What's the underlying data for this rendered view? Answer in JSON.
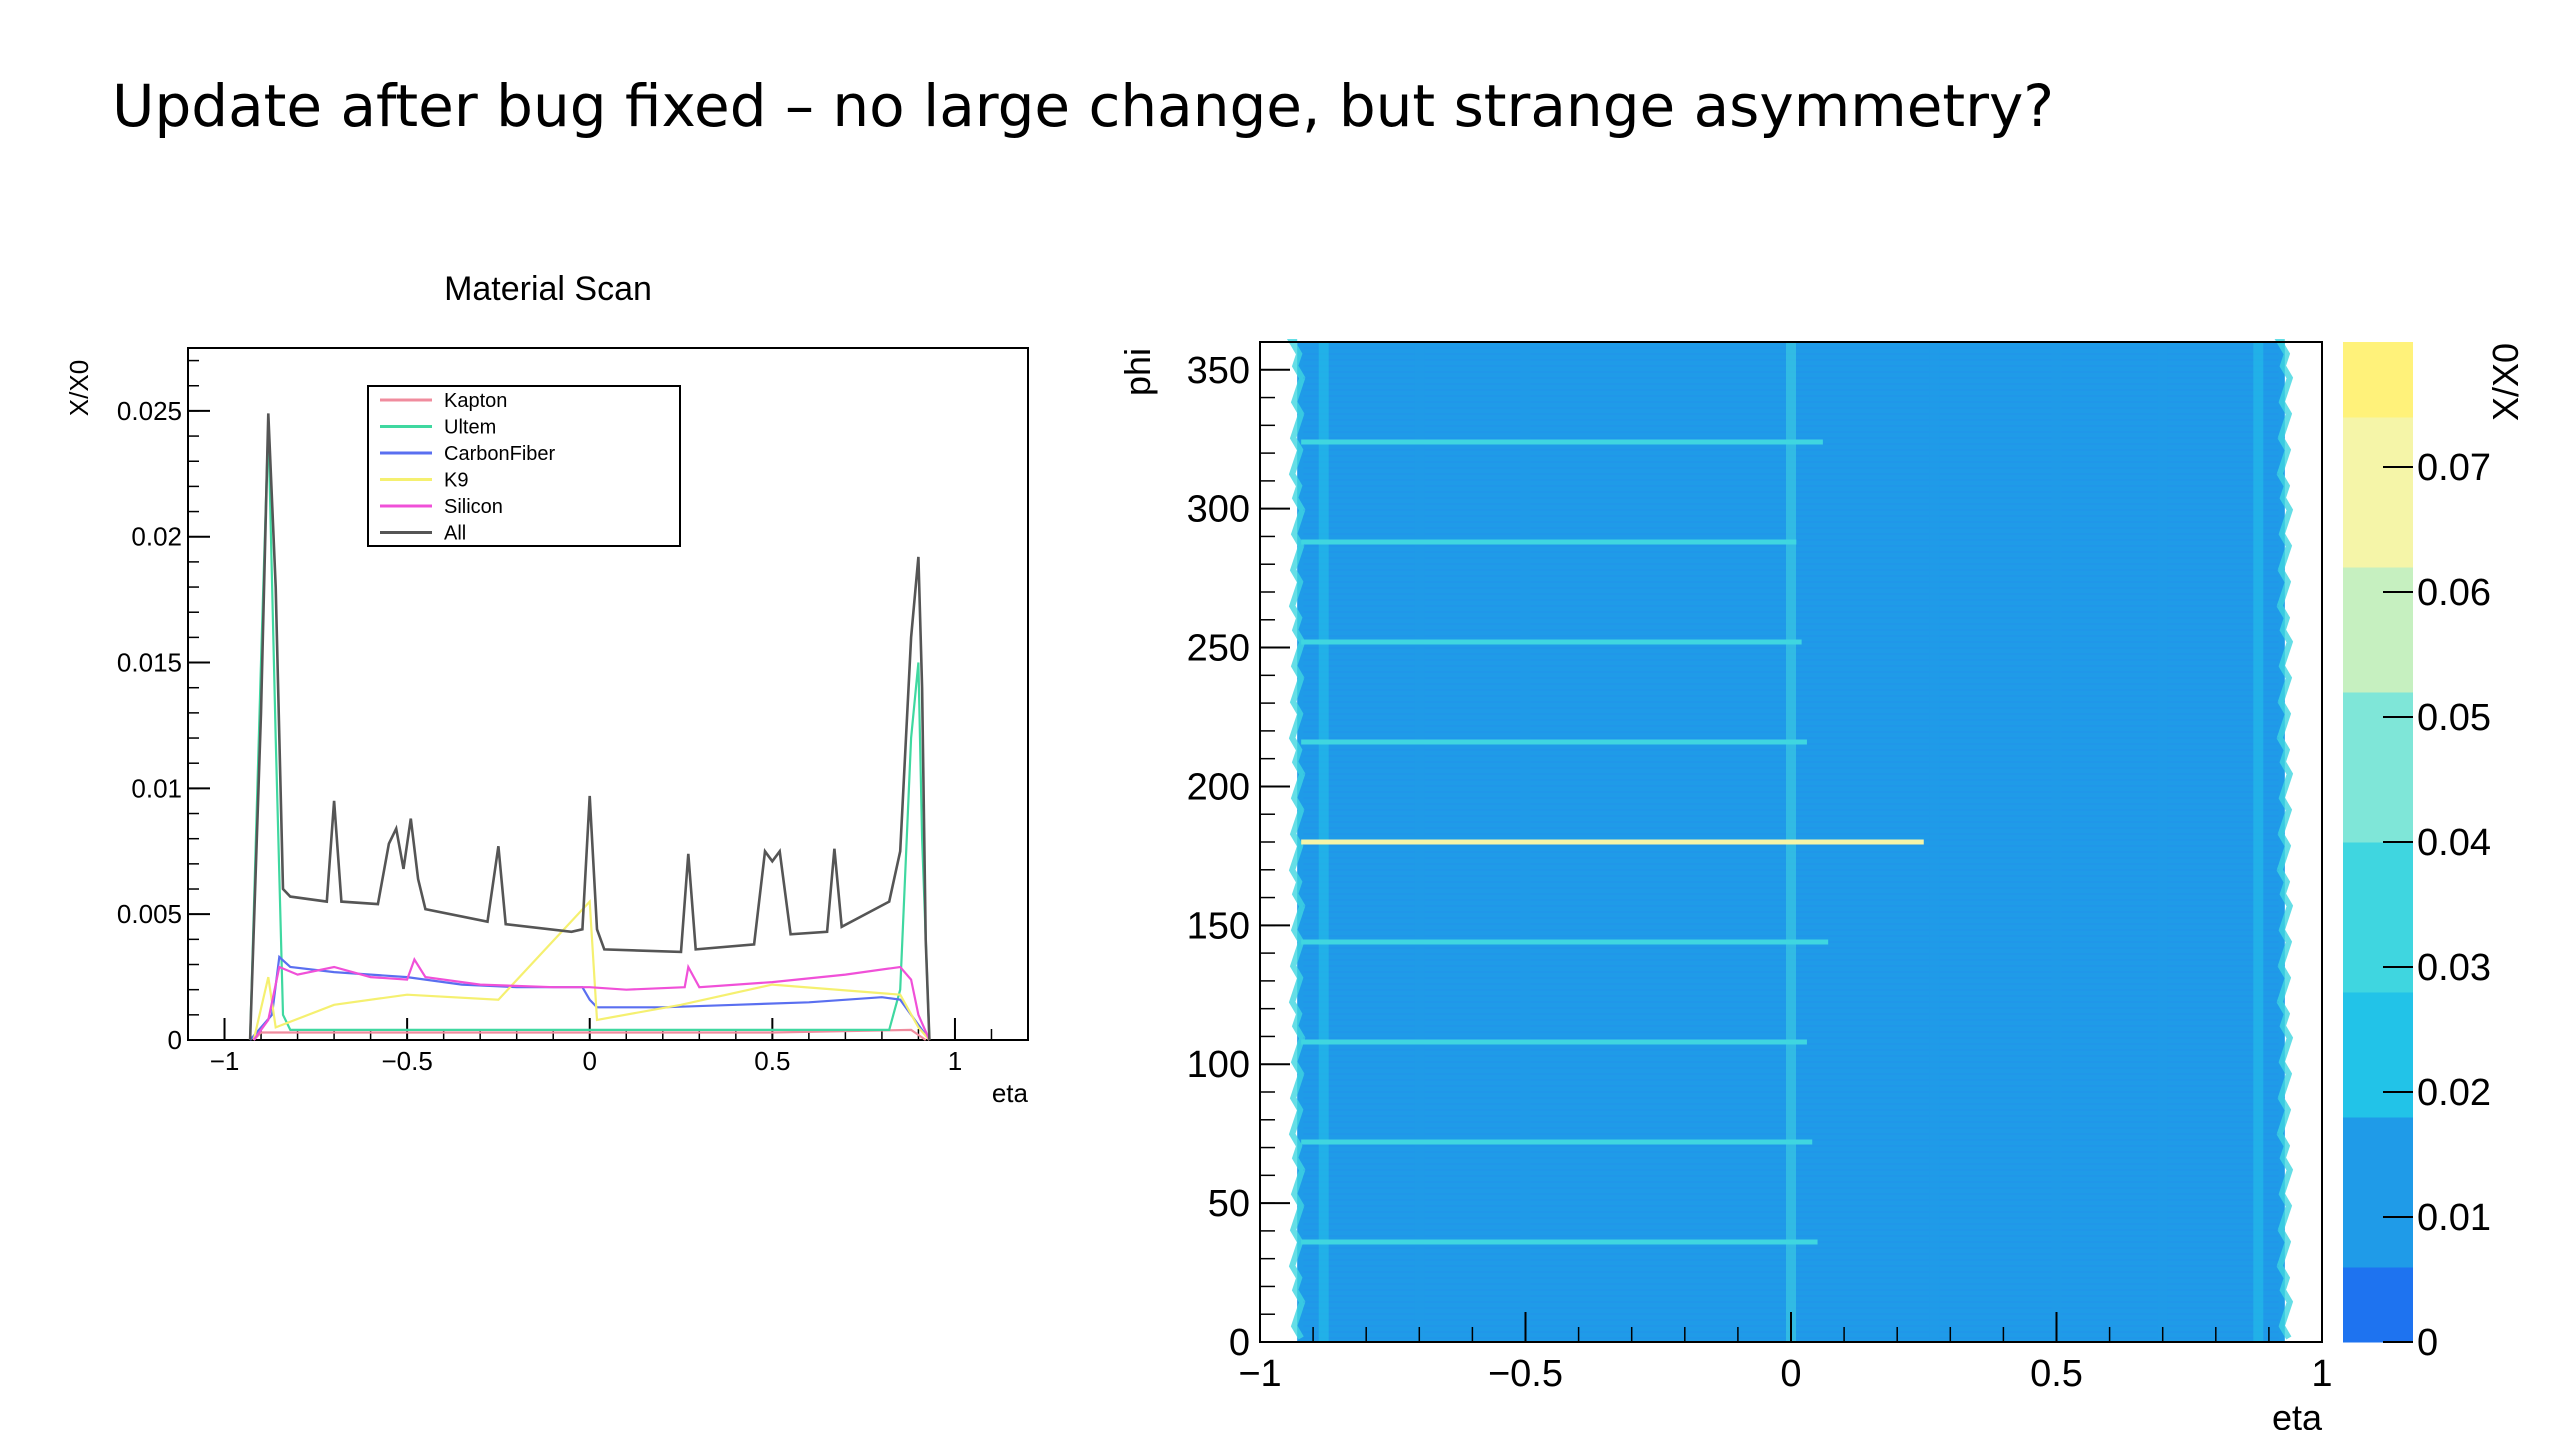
{
  "slide": {
    "title": "Update after bug fixed – no large change, but strange asymmetry?"
  },
  "chart_data": [
    {
      "type": "line",
      "title": "Material Scan",
      "xlabel": "eta",
      "ylabel": "X/X0",
      "xlim": [
        -1.1,
        1.2
      ],
      "ylim": [
        0,
        0.0275
      ],
      "x_ticks": [
        -1,
        -0.5,
        0,
        0.5,
        1
      ],
      "x_tick_labels": [
        "−1",
        "−0.5",
        "0",
        "0.5",
        "1"
      ],
      "y_ticks": [
        0,
        0.005,
        0.01,
        0.015,
        0.02,
        0.025
      ],
      "y_tick_labels": [
        "0",
        "0.005",
        "0.01",
        "0.015",
        "0.02",
        "0.025"
      ],
      "legend_position": "top-center",
      "grid": false,
      "series": [
        {
          "name": "Kapton",
          "color": "#f08c9e",
          "points": [
            [
              -0.92,
              0
            ],
            [
              -0.9,
              0.0003
            ],
            [
              -0.8,
              0.0003
            ],
            [
              -0.5,
              0.0003
            ],
            [
              0,
              0.0003
            ],
            [
              0.5,
              0.0003
            ],
            [
              0.88,
              0.0004
            ],
            [
              0.92,
              0
            ]
          ]
        },
        {
          "name": "Ultem",
          "color": "#3fd8a0",
          "points": [
            [
              -0.93,
              0
            ],
            [
              -0.9,
              0.015
            ],
            [
              -0.88,
              0.0245
            ],
            [
              -0.86,
              0.012
            ],
            [
              -0.84,
              0.001
            ],
            [
              -0.82,
              0.0004
            ],
            [
              0.82,
              0.0004
            ],
            [
              0.85,
              0.002
            ],
            [
              0.88,
              0.012
            ],
            [
              0.9,
              0.015
            ],
            [
              0.91,
              0.008
            ],
            [
              0.93,
              0
            ]
          ]
        },
        {
          "name": "CarbonFiber",
          "color": "#5a6ff0",
          "points": [
            [
              -0.93,
              0
            ],
            [
              -0.87,
              0.001
            ],
            [
              -0.85,
              0.0033
            ],
            [
              -0.82,
              0.0029
            ],
            [
              -0.7,
              0.0027
            ],
            [
              -0.5,
              0.0025
            ],
            [
              -0.35,
              0.0022
            ],
            [
              -0.2,
              0.0021
            ],
            [
              -0.02,
              0.0021
            ],
            [
              0,
              0.0016
            ],
            [
              0.02,
              0.0013
            ],
            [
              0.2,
              0.0013
            ],
            [
              0.4,
              0.0014
            ],
            [
              0.6,
              0.0015
            ],
            [
              0.8,
              0.0017
            ],
            [
              0.85,
              0.0016
            ],
            [
              0.88,
              0.001
            ],
            [
              0.93,
              0
            ]
          ]
        },
        {
          "name": "K9",
          "color": "#f5f070",
          "points": [
            [
              -0.92,
              0
            ],
            [
              -0.88,
              0.0025
            ],
            [
              -0.86,
              0.0005
            ],
            [
              -0.7,
              0.0014
            ],
            [
              -0.5,
              0.0018
            ],
            [
              -0.25,
              0.0016
            ],
            [
              0,
              0.0055
            ],
            [
              0.02,
              0.0008
            ],
            [
              0.25,
              0.0014
            ],
            [
              0.5,
              0.0022
            ],
            [
              0.85,
              0.0018
            ],
            [
              0.9,
              0.0005
            ],
            [
              0.93,
              0
            ]
          ]
        },
        {
          "name": "Silicon",
          "color": "#f050d8",
          "points": [
            [
              -0.92,
              0
            ],
            [
              -0.88,
              0.0008
            ],
            [
              -0.85,
              0.0029
            ],
            [
              -0.8,
              0.0026
            ],
            [
              -0.7,
              0.0029
            ],
            [
              -0.6,
              0.0025
            ],
            [
              -0.5,
              0.0024
            ],
            [
              -0.48,
              0.0032
            ],
            [
              -0.45,
              0.0025
            ],
            [
              -0.3,
              0.0022
            ],
            [
              -0.1,
              0.0021
            ],
            [
              0,
              0.0021
            ],
            [
              0.1,
              0.002
            ],
            [
              0.26,
              0.0021
            ],
            [
              0.27,
              0.0029
            ],
            [
              0.3,
              0.0021
            ],
            [
              0.5,
              0.0023
            ],
            [
              0.7,
              0.0026
            ],
            [
              0.85,
              0.0029
            ],
            [
              0.88,
              0.0024
            ],
            [
              0.9,
              0.001
            ],
            [
              0.93,
              0
            ]
          ]
        },
        {
          "name": "All",
          "color": "#555555",
          "points": [
            [
              -0.93,
              0
            ],
            [
              -0.9,
              0.013
            ],
            [
              -0.88,
              0.0249
            ],
            [
              -0.86,
              0.018
            ],
            [
              -0.84,
              0.006
            ],
            [
              -0.82,
              0.0057
            ],
            [
              -0.72,
              0.0055
            ],
            [
              -0.7,
              0.0095
            ],
            [
              -0.68,
              0.0055
            ],
            [
              -0.58,
              0.0054
            ],
            [
              -0.55,
              0.0078
            ],
            [
              -0.53,
              0.0084
            ],
            [
              -0.51,
              0.0068
            ],
            [
              -0.49,
              0.0088
            ],
            [
              -0.47,
              0.0064
            ],
            [
              -0.45,
              0.0052
            ],
            [
              -0.28,
              0.0047
            ],
            [
              -0.25,
              0.0077
            ],
            [
              -0.23,
              0.0046
            ],
            [
              -0.05,
              0.0043
            ],
            [
              -0.02,
              0.0044
            ],
            [
              0,
              0.0097
            ],
            [
              0.02,
              0.0044
            ],
            [
              0.04,
              0.0036
            ],
            [
              0.25,
              0.0035
            ],
            [
              0.27,
              0.0074
            ],
            [
              0.29,
              0.0036
            ],
            [
              0.45,
              0.0038
            ],
            [
              0.48,
              0.0075
            ],
            [
              0.5,
              0.0071
            ],
            [
              0.52,
              0.0075
            ],
            [
              0.55,
              0.0042
            ],
            [
              0.65,
              0.0043
            ],
            [
              0.67,
              0.0076
            ],
            [
              0.69,
              0.0045
            ],
            [
              0.82,
              0.0055
            ],
            [
              0.85,
              0.0075
            ],
            [
              0.88,
              0.016
            ],
            [
              0.9,
              0.0192
            ],
            [
              0.91,
              0.014
            ],
            [
              0.92,
              0.004
            ],
            [
              0.93,
              0
            ]
          ]
        }
      ]
    },
    {
      "type": "heatmap",
      "xlabel": "eta",
      "ylabel": "phi",
      "zlabel": "X/X0",
      "xlim": [
        -1,
        1
      ],
      "ylim": [
        0,
        360
      ],
      "zlim": [
        0,
        0.08
      ],
      "x_ticks": [
        -1,
        -0.5,
        0,
        0.5,
        1
      ],
      "x_tick_labels": [
        "−1",
        "−0.5",
        "0",
        "0.5",
        "1"
      ],
      "y_ticks": [
        0,
        50,
        100,
        150,
        200,
        250,
        300,
        350
      ],
      "y_tick_labels": [
        "0",
        "50",
        "100",
        "150",
        "200",
        "250",
        "300",
        "350"
      ],
      "z_ticks": [
        0,
        0.01,
        0.02,
        0.03,
        0.04,
        0.05,
        0.06,
        0.07
      ],
      "z_tick_labels": [
        "0",
        "0.01",
        "0.02",
        "0.03",
        "0.04",
        "0.05",
        "0.06",
        "0.07"
      ],
      "colorscale": [
        "#1e73f0",
        "#1f9be8",
        "#22c3e8",
        "#3fd6e0",
        "#7fe6d8",
        "#c6f0c0",
        "#f5f5a8",
        "#fff27a"
      ],
      "eta_coverage": [
        -0.93,
        0.93
      ],
      "base_value": 0.01,
      "vertical_bands": [
        {
          "eta": -0.88,
          "value": 0.02
        },
        {
          "eta": -0.7,
          "value": 0.015
        },
        {
          "eta": -0.5,
          "value": 0.014
        },
        {
          "eta": 0.0,
          "value": 0.03
        },
        {
          "eta": 0.27,
          "value": 0.014
        },
        {
          "eta": 0.5,
          "value": 0.015
        },
        {
          "eta": 0.7,
          "value": 0.014
        },
        {
          "eta": 0.88,
          "value": 0.02
        }
      ],
      "horizontal_lines": [
        {
          "phi": 36,
          "eta_end": 0.05,
          "value": 0.035
        },
        {
          "phi": 72,
          "eta_end": 0.04,
          "value": 0.035
        },
        {
          "phi": 108,
          "eta_end": 0.03,
          "value": 0.035
        },
        {
          "phi": 144,
          "eta_end": 0.07,
          "value": 0.035
        },
        {
          "phi": 180,
          "eta_end": 0.25,
          "value": 0.065
        },
        {
          "phi": 216,
          "eta_end": 0.03,
          "value": 0.035
        },
        {
          "phi": 252,
          "eta_end": 0.02,
          "value": 0.035
        },
        {
          "phi": 288,
          "eta_end": 0.01,
          "value": 0.035
        },
        {
          "phi": 324,
          "eta_end": 0.06,
          "value": 0.035
        }
      ]
    }
  ]
}
